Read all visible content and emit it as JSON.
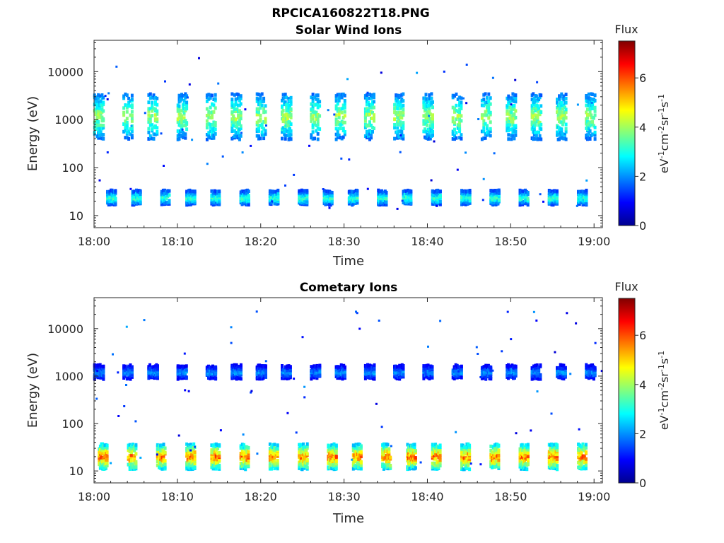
{
  "chart_data": {
    "figure_title": "RPCICA160822T18.PNG",
    "panels": [
      {
        "type": "heatmap",
        "title": "Solar Wind Ions",
        "xlabel": "Time",
        "ylabel": "Energy (eV)",
        "x_ticks": [
          "18:00",
          "18:10",
          "18:20",
          "18:30",
          "18:40",
          "18:50",
          "19:00"
        ],
        "x_range_min": [
          0,
          61
        ],
        "y_ticks": [
          "10",
          "100",
          "1000",
          "10000"
        ],
        "y_scale": "log",
        "y_range": [
          5.6,
          45000
        ],
        "colorbar": {
          "label": "Flux",
          "unit": "eV-1cm-2sr-1s-1",
          "ticks": [
            "0",
            "2",
            "4",
            "6"
          ],
          "range": [
            0,
            7.5
          ]
        },
        "features": {
          "main_band": {
            "energy_center_eV": 1100,
            "energy_spread_eV": [
              400,
              3200
            ],
            "bursts_at_min": [
              0.5,
              4,
              7,
              10.5,
              14,
              17,
              20,
              23,
              26.5,
              29.5,
              33,
              36.5,
              40,
              43.5,
              47,
              50,
              53,
              56,
              59.5
            ],
            "peak_flux": 4.6
          },
          "low_band": {
            "energy_center_eV": 23,
            "energy_spread_eV": [
              17,
              32
            ],
            "bursts_at_min": [
              2,
              5,
              8.5,
              11.5,
              14.5,
              18,
              21.5,
              25,
              28,
              31,
              34.5,
              37.5,
              41,
              44.5,
              48,
              51.5,
              55,
              58.5
            ],
            "peak_flux": 3.8
          }
        }
      },
      {
        "type": "heatmap",
        "title": "Cometary Ions",
        "xlabel": "Time",
        "ylabel": "Energy (eV)",
        "x_ticks": [
          "18:00",
          "18:10",
          "18:20",
          "18:30",
          "18:40",
          "18:50",
          "19:00"
        ],
        "x_range_min": [
          0,
          61
        ],
        "y_ticks": [
          "10",
          "100",
          "1000",
          "10000"
        ],
        "y_scale": "log",
        "y_range": [
          5.6,
          45000
        ],
        "colorbar": {
          "label": "Flux",
          "unit": "eV-1cm-2sr-1s-1",
          "ticks": [
            "0",
            "2",
            "4",
            "6"
          ],
          "range": [
            0,
            7.5
          ]
        },
        "features": {
          "main_band": {
            "energy_center_eV": 1200,
            "energy_spread_eV": [
              900,
              1600
            ],
            "bursts_at_min": [
              0.5,
              4,
              7,
              10.5,
              14,
              17,
              20,
              23,
              26.5,
              29.5,
              33,
              36.5,
              40,
              43.5,
              47,
              50,
              53,
              56,
              59.5
            ],
            "peak_flux": 2.4
          },
          "low_band": {
            "energy_center_eV": 20,
            "energy_spread_eV": [
              11,
              35
            ],
            "bursts_at_min": [
              1,
              4.5,
              8,
              11.5,
              14.5,
              18,
              21.5,
              25,
              28.5,
              31.5,
              35,
              38,
              41,
              44.5,
              48,
              51.5,
              55,
              58.5
            ],
            "peak_flux": 6.6
          }
        }
      }
    ]
  }
}
